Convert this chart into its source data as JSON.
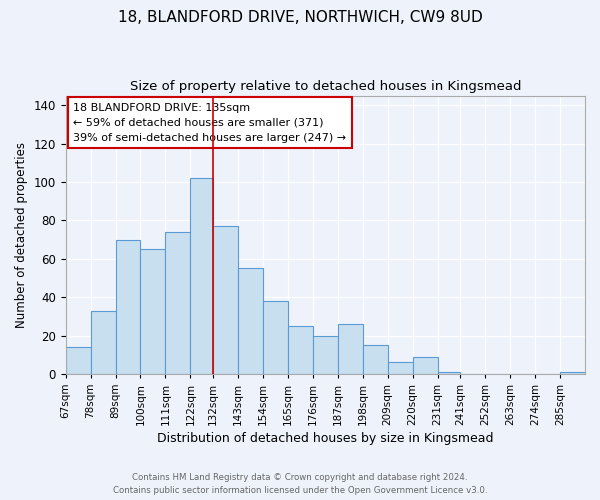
{
  "title": "18, BLANDFORD DRIVE, NORTHWICH, CW9 8UD",
  "subtitle": "Size of property relative to detached houses in Kingsmead",
  "xlabel": "Distribution of detached houses by size in Kingsmead",
  "ylabel": "Number of detached properties",
  "bin_labels": [
    "67sqm",
    "78sqm",
    "89sqm",
    "100sqm",
    "111sqm",
    "122sqm",
    "132sqm",
    "143sqm",
    "154sqm",
    "165sqm",
    "176sqm",
    "187sqm",
    "198sqm",
    "209sqm",
    "220sqm",
    "231sqm",
    "241sqm",
    "252sqm",
    "263sqm",
    "274sqm",
    "285sqm"
  ],
  "bar_heights": [
    14,
    33,
    70,
    65,
    74,
    102,
    77,
    55,
    38,
    25,
    20,
    26,
    15,
    6,
    9,
    1,
    0,
    0,
    0,
    0,
    1
  ],
  "bar_color": "#c8dff0",
  "bar_edge_color": "#5b9bd5",
  "bin_edges": [
    67,
    78,
    89,
    100,
    111,
    122,
    132,
    143,
    154,
    165,
    176,
    187,
    198,
    209,
    220,
    231,
    241,
    252,
    263,
    274,
    285,
    296
  ],
  "annotation_title": "18 BLANDFORD DRIVE: 135sqm",
  "annotation_line1": "← 59% of detached houses are smaller (371)",
  "annotation_line2": "39% of semi-detached houses are larger (247) →",
  "annotation_box_color": "#ffffff",
  "annotation_box_edge": "#cc0000",
  "reference_line_color": "#cc0000",
  "ylim": [
    0,
    145
  ],
  "footer_line1": "Contains HM Land Registry data © Crown copyright and database right 2024.",
  "footer_line2": "Contains public sector information licensed under the Open Government Licence v3.0.",
  "background_color": "#eef2fb",
  "plot_background": "#eef2fb",
  "grid_color": "#ffffff",
  "title_fontsize": 11,
  "subtitle_fontsize": 9.5,
  "tick_label_fontsize": 7.5,
  "ylabel_fontsize": 8.5,
  "xlabel_fontsize": 9,
  "ann_fontsize": 8
}
